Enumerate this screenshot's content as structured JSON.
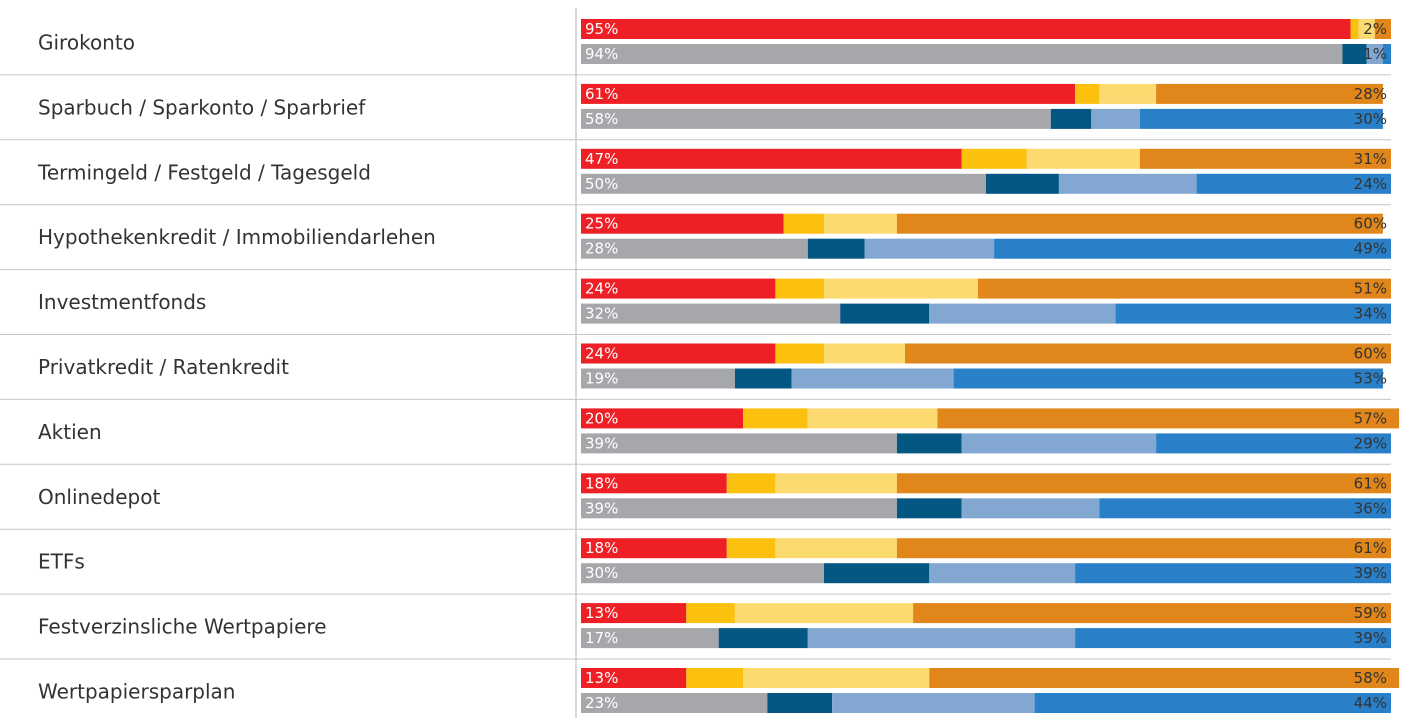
{
  "chart_data": {
    "type": "bar",
    "orientation": "horizontal",
    "stacked": true,
    "normalized": true,
    "title": "",
    "xlabel": "",
    "ylabel": "",
    "xlim": [
      0,
      100
    ],
    "legend": "none",
    "grid": false,
    "categories": [
      "Girokonto",
      "Sparbuch / Sparkonto / Sparbrief",
      "Termingeld / Festgeld / Tagesgeld",
      "Hypothekenkredit / Immobiliendarlehen",
      "Investmentfonds",
      "Privatkredit / Ratenkredit",
      "Aktien",
      "Onlinedepot",
      "ETFs",
      "Festverzinsliche Wertpapiere",
      "Wertpapiersparplan"
    ],
    "series": [
      {
        "segment_colors": [
          "#ee1f25",
          "#fcc10f",
          "#fdda70",
          "#e1861a"
        ],
        "segments": [
          [
            95,
            1,
            2,
            2
          ],
          [
            61,
            3,
            7,
            28
          ],
          [
            47,
            8,
            14,
            31
          ],
          [
            25,
            5,
            9,
            60
          ],
          [
            24,
            6,
            19,
            51
          ],
          [
            24,
            6,
            10,
            60
          ],
          [
            20,
            8,
            16,
            57
          ],
          [
            18,
            6,
            15,
            61
          ],
          [
            18,
            6,
            15,
            61
          ],
          [
            13,
            6,
            22,
            59
          ],
          [
            13,
            7,
            23,
            58
          ]
        ]
      },
      {
        "segment_colors": [
          "#a6a7aa",
          "#055783",
          "#82a7d1",
          "#2980c8"
        ],
        "segments": [
          [
            94,
            3,
            2,
            1
          ],
          [
            58,
            5,
            6,
            30
          ],
          [
            50,
            9,
            17,
            24
          ],
          [
            28,
            7,
            16,
            49
          ],
          [
            32,
            11,
            23,
            34
          ],
          [
            19,
            7,
            20,
            53
          ],
          [
            39,
            8,
            24,
            29
          ],
          [
            39,
            8,
            17,
            36
          ],
          [
            30,
            13,
            18,
            39
          ],
          [
            17,
            11,
            33,
            39
          ],
          [
            23,
            8,
            25,
            44
          ]
        ]
      }
    ],
    "label_colors": {
      "first_segment": "#ffffff",
      "last_segment": "#333333"
    }
  }
}
